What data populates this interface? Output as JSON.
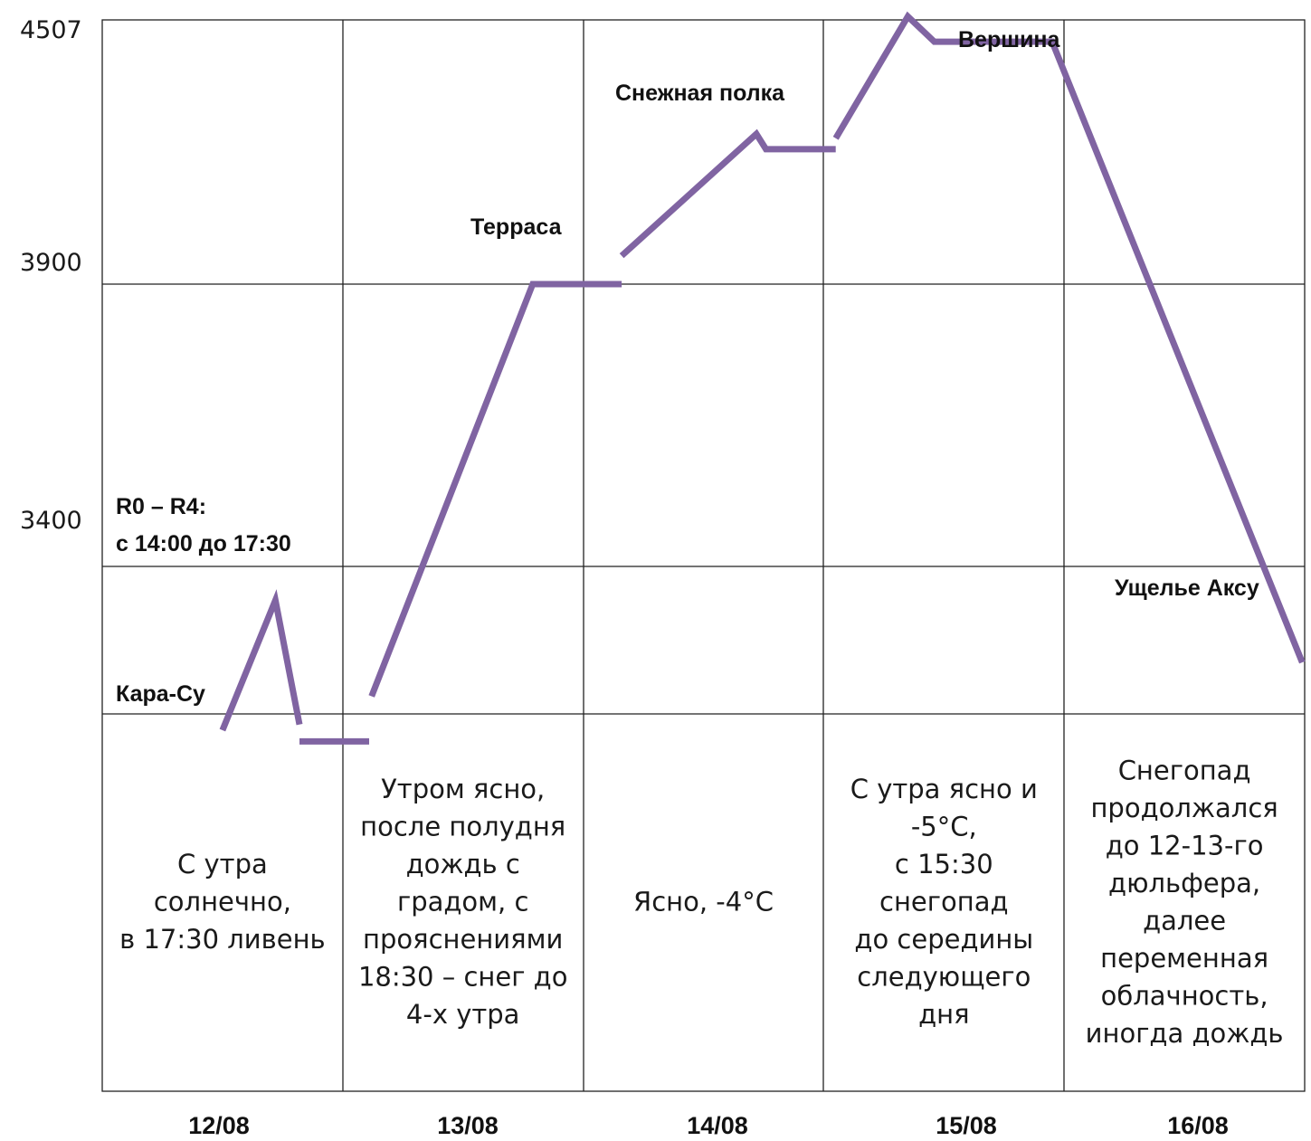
{
  "chart_data": {
    "type": "line",
    "title": "",
    "xlabel": "",
    "ylabel": "",
    "line_color": "#8064a2",
    "y_ticks": [
      "4507",
      "3900",
      "3400"
    ],
    "categories": [
      "12/08",
      "13/08",
      "14/08",
      "15/08",
      "16/08"
    ],
    "segments": [
      [
        [
          0.5,
          3110
        ],
        [
          0.72,
          3340
        ],
        [
          0.82,
          3120
        ]
      ],
      [
        [
          0.82,
          3090
        ],
        [
          1.11,
          3090
        ]
      ],
      [
        [
          1.12,
          3170
        ],
        [
          1.79,
          3900
        ],
        [
          2.16,
          3900
        ]
      ],
      [
        [
          2.16,
          3965
        ],
        [
          2.72,
          4245
        ],
        [
          2.76,
          4210
        ],
        [
          3.05,
          4210
        ]
      ],
      [
        [
          3.05,
          4235
        ],
        [
          3.35,
          4515
        ],
        [
          3.46,
          4457
        ],
        [
          3.95,
          4457
        ],
        [
          4.99,
          3230
        ]
      ]
    ],
    "annotations": [
      {
        "text": "R0 – R4:",
        "near": "12/08"
      },
      {
        "text": "с 14:00 до 17:30",
        "near": "12/08"
      },
      {
        "text": "Кара-Су",
        "near": "12/08"
      },
      {
        "text": "Терраса",
        "near": "13/08"
      },
      {
        "text": "Снежная полка",
        "near": "14/08"
      },
      {
        "text": "Вершина",
        "near": "15/08"
      },
      {
        "text": "Ущелье Аксу",
        "near": "16/08"
      }
    ],
    "weather": [
      [
        "С утра",
        "солнечно,",
        "в 17:30 ливень"
      ],
      [
        "Утром ясно,",
        "после полудня",
        "дождь с",
        "градом, с",
        "прояснениями",
        "18:30 – снег до",
        "4-х утра"
      ],
      [
        "Ясно, -4°С"
      ],
      [
        "С утра ясно и",
        "-5°С,",
        "с 15:30",
        "снегопад",
        "до середины",
        "следующего",
        "дня"
      ],
      [
        "Снегопад",
        "продолжался",
        "до 12-13-го",
        "дюльфера,",
        "далее",
        "переменная",
        "облачность,",
        "иногда дождь"
      ]
    ]
  }
}
